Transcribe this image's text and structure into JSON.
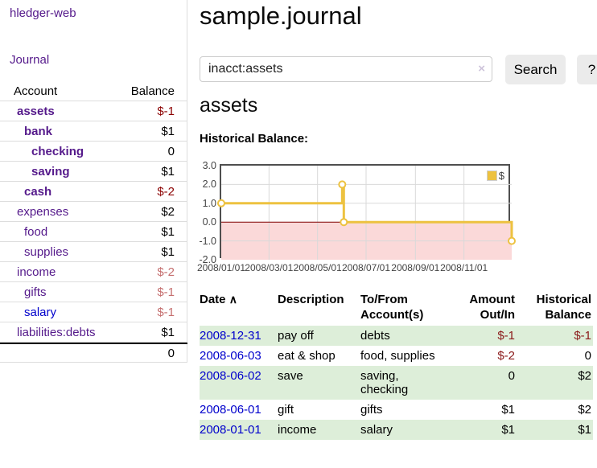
{
  "app": {
    "brand": "hledger-web",
    "nav_journal": "Journal"
  },
  "sidebar": {
    "headers": {
      "account": "Account",
      "balance": "Balance"
    },
    "rows": [
      {
        "name": "assets",
        "balance": "$-1",
        "indent": 1,
        "bold": true,
        "link": "purple",
        "bal_class": "strong-neg"
      },
      {
        "name": "bank",
        "balance": "$1",
        "indent": 2,
        "bold": true,
        "link": "purple",
        "bal_class": "strong"
      },
      {
        "name": "checking",
        "balance": "0",
        "indent": 3,
        "bold": true,
        "link": "purple",
        "bal_class": "strong"
      },
      {
        "name": "saving",
        "balance": "$1",
        "indent": 3,
        "bold": true,
        "link": "purple",
        "bal_class": "strong"
      },
      {
        "name": "cash",
        "balance": "$-2",
        "indent": 2,
        "bold": true,
        "link": "purple",
        "bal_class": "strong-neg"
      },
      {
        "name": "expenses",
        "balance": "$2",
        "indent": 1,
        "bold": false,
        "link": "purple",
        "bal_class": "plain"
      },
      {
        "name": "food",
        "balance": "$1",
        "indent": 2,
        "bold": false,
        "link": "purple",
        "bal_class": "plain"
      },
      {
        "name": "supplies",
        "balance": "$1",
        "indent": 2,
        "bold": false,
        "link": "purple",
        "bal_class": "plain"
      },
      {
        "name": "income",
        "balance": "$-2",
        "indent": 1,
        "bold": false,
        "link": "purple",
        "bal_class": "soft-neg"
      },
      {
        "name": "gifts",
        "balance": "$-1",
        "indent": 2,
        "bold": false,
        "link": "purple",
        "bal_class": "soft-neg"
      },
      {
        "name": "salary",
        "balance": "$-1",
        "indent": 2,
        "bold": false,
        "link": "blue",
        "bal_class": "soft-neg"
      },
      {
        "name": "liabilities:debts",
        "balance": "$1",
        "indent": 1,
        "bold": false,
        "link": "purple",
        "bal_class": "plain"
      }
    ],
    "total": "0"
  },
  "main": {
    "title": "sample.journal",
    "search": {
      "value": "inacct:assets",
      "clear_icon": "×",
      "button_label": "Search",
      "help_label": "?"
    },
    "account_heading": "assets",
    "chart_label": "Historical Balance:"
  },
  "chart_data": {
    "type": "line",
    "title": "Historical Balance:",
    "style": "steps",
    "series": [
      {
        "name": "$",
        "color": "#edc240",
        "points": [
          [
            "2008-01-01",
            1
          ],
          [
            "2008-06-01",
            2
          ],
          [
            "2008-06-03",
            0
          ],
          [
            "2008-12-31",
            -1
          ]
        ]
      }
    ],
    "x_range": [
      "2008-01-01",
      "2008-12-31"
    ],
    "x_ticks": [
      "2008/01/01",
      "2008/03/01",
      "2008/05/01",
      "2008/07/01",
      "2008/09/01",
      "2008/11/01"
    ],
    "x_tick_dates": [
      "2008-01-01",
      "2008-03-01",
      "2008-05-01",
      "2008-07-01",
      "2008-09-01",
      "2008-11-01"
    ],
    "y_ticks": [
      3.0,
      2.0,
      1.0,
      0.0,
      -1.0,
      -2.0
    ],
    "ylim": [
      -2,
      3
    ],
    "grid": true,
    "legend_position": "top-right",
    "colors": {
      "line": "#edc240",
      "marker_fill": "#ffffff",
      "negative_region": "#fbd9d9",
      "zero_line": "#800000",
      "gridline": "#d9d9d9",
      "plot_border": "#4f4f4f"
    }
  },
  "register": {
    "headers": {
      "date": "Date",
      "sort_icon": "∧",
      "description": "Description",
      "accounts_line1": "To/From",
      "accounts_line2": "Account(s)",
      "amount_line1": "Amount",
      "amount_line2": "Out/In",
      "balance_line1": "Historical",
      "balance_line2": "Balance"
    },
    "rows": [
      {
        "date": "2008-12-31",
        "description": "pay off",
        "accounts": "debts",
        "amount": "$-1",
        "balance": "$-1",
        "amount_neg": true,
        "balance_neg": true,
        "green": true
      },
      {
        "date": "2008-06-03",
        "description": "eat & shop",
        "accounts": "food, supplies",
        "amount": "$-2",
        "balance": "0",
        "amount_neg": true,
        "balance_neg": false,
        "green": false
      },
      {
        "date": "2008-06-02",
        "description": "save",
        "accounts": "saving, checking",
        "amount": "0",
        "balance": "$2",
        "amount_neg": false,
        "balance_neg": false,
        "green": true
      },
      {
        "date": "2008-06-01",
        "description": "gift",
        "accounts": "gifts",
        "amount": "$1",
        "balance": "$2",
        "amount_neg": false,
        "balance_neg": false,
        "green": false
      },
      {
        "date": "2008-01-01",
        "description": "income",
        "accounts": "salary",
        "amount": "$1",
        "balance": "$1",
        "amount_neg": false,
        "balance_neg": false,
        "green": true
      }
    ]
  }
}
